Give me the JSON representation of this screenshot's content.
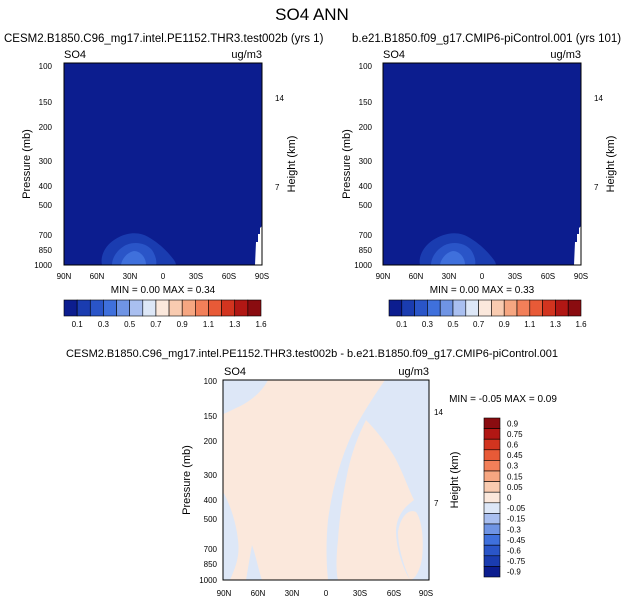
{
  "chart_data": {
    "title": "SO4 ANN",
    "panels": [
      {
        "id": "top-left",
        "type": "contour",
        "title": "CESM2.B1850.C96_mg17.intel.PE1152.THR3.test002b (yrs 1)",
        "var_label": "SO4",
        "units": "ug/m3",
        "xticks": [
          "90N",
          "60N",
          "30N",
          "0",
          "30S",
          "60S",
          "90S"
        ],
        "ylabel": "Pressure (mb)",
        "yticks": [
          100,
          150,
          200,
          300,
          400,
          500,
          700,
          850,
          1000
        ],
        "right_label": "Height (km)",
        "right_ticks": [
          14,
          7
        ],
        "stats_label": "MIN =  0.00  MAX =  0.34",
        "min": 0.0,
        "max": 0.34
      },
      {
        "id": "top-right",
        "type": "contour",
        "title": "b.e21.B1850.f09_g17.CMIP6-piControl.001 (yrs 101)",
        "var_label": "SO4",
        "units": "ug/m3",
        "xticks": [
          "90N",
          "60N",
          "30N",
          "0",
          "30S",
          "60S",
          "90S"
        ],
        "ylabel": "Pressure (mb)",
        "yticks": [
          100,
          150,
          200,
          300,
          400,
          500,
          700,
          850,
          1000
        ],
        "right_label": "Height (km)",
        "right_ticks": [
          14,
          7
        ],
        "stats_label": "MIN =  0.00  MAX =  0.33",
        "min": 0.0,
        "max": 0.33
      },
      {
        "id": "bottom",
        "type": "contour",
        "title": "CESM2.B1850.C96_mg17.intel.PE1152.THR3.test002b - b.e21.B1850.f09_g17.CMIP6-piControl.001",
        "var_label": "SO4",
        "units": "ug/m3",
        "xticks": [
          "90N",
          "60N",
          "30N",
          "0",
          "30S",
          "60S",
          "90S"
        ],
        "ylabel": "Pressure (mb)",
        "yticks": [
          100,
          150,
          200,
          300,
          400,
          500,
          700,
          850,
          1000
        ],
        "right_label": "Height (km)",
        "right_ticks": [
          14,
          7
        ],
        "stats_label": "MIN = -0.05  MAX =  0.09",
        "min": -0.05,
        "max": 0.09
      }
    ],
    "shared_colorbar": {
      "labels": [
        "0.1",
        "0.3",
        "0.5",
        "0.7",
        "0.9",
        "1.1",
        "1.3",
        "1.6"
      ],
      "colors": [
        "#0c1d8f",
        "#1a3cb0",
        "#2a55c8",
        "#3f70dc",
        "#6f94e4",
        "#a9bff0",
        "#dde7f7",
        "#fbe8dc",
        "#f9cbb0",
        "#f6a681",
        "#f27f59",
        "#e85a37",
        "#d2341f",
        "#b11714",
        "#8a0c10"
      ]
    },
    "diff_colorbar": {
      "labels": [
        "0.9",
        "0.75",
        "0.6",
        "0.45",
        "0.3",
        "0.15",
        "0.05",
        "0",
        "-0.05",
        "-0.15",
        "-0.3",
        "-0.45",
        "-0.6",
        "-0.75",
        "-0.9"
      ],
      "colors": [
        "#8a0c10",
        "#b11714",
        "#d2341f",
        "#e85a37",
        "#f27f59",
        "#f6a681",
        "#f9cbb0",
        "#fbe8dc",
        "#dde7f7",
        "#a9bff0",
        "#6f94e4",
        "#3f70dc",
        "#2a55c8",
        "#1a3cb0",
        "#0c1d8f"
      ]
    }
  }
}
